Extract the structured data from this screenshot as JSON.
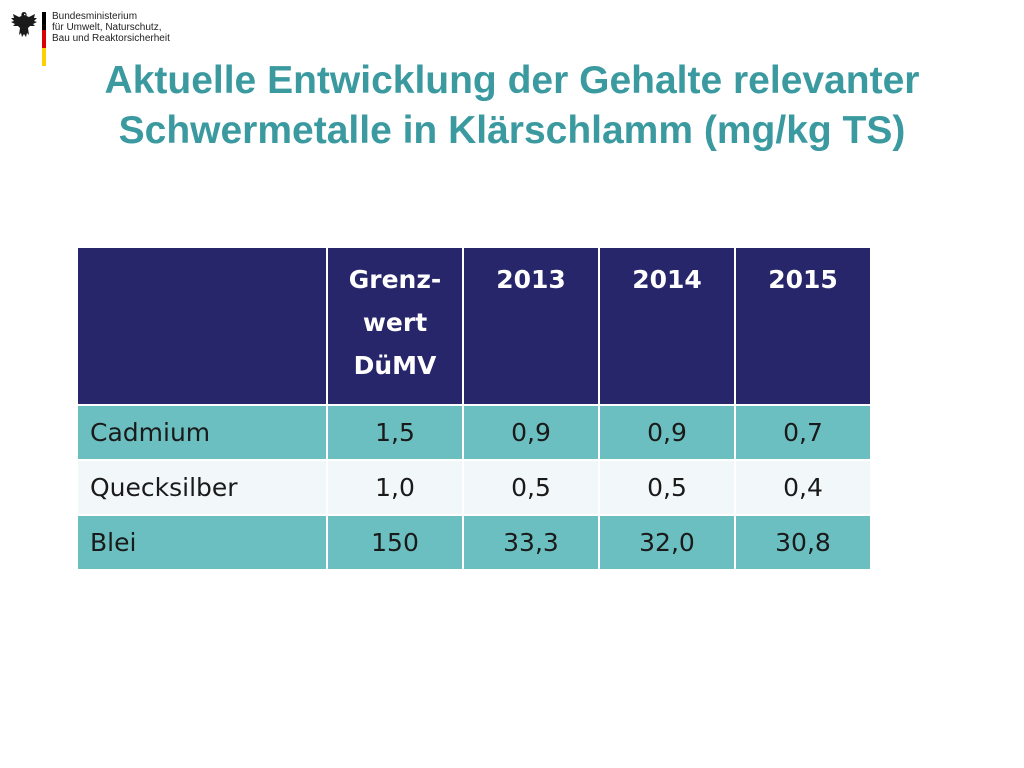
{
  "logo": {
    "lines": [
      "Bundesministerium",
      "für Umwelt, Naturschutz,",
      "Bau und Reaktorsicherheit"
    ],
    "flag_colors": [
      "#000000",
      "#dd0000",
      "#ffce00"
    ],
    "emblem_icon": "eagle-icon"
  },
  "title": {
    "line1": "Aktuelle Entwicklung der Gehalte relevanter",
    "line2": "Schwermetalle in Klärschlamm (mg/kg TS)"
  },
  "table": {
    "header": {
      "col0": "",
      "col1_lines": [
        "Grenz-",
        "wert",
        "DüMV"
      ],
      "col2": "2013",
      "col3": "2014",
      "col4": "2015"
    },
    "rows": [
      {
        "name": "Cadmium",
        "grenzwert": "1,5",
        "y2013": "0,9",
        "y2014": "0,9",
        "y2015": "0,7"
      },
      {
        "name": "Quecksilber",
        "grenzwert": "1,0",
        "y2013": "0,5",
        "y2014": "0,5",
        "y2015": "0,4"
      },
      {
        "name": "Blei",
        "grenzwert": "150",
        "y2013": "33,3",
        "y2014": "32,0",
        "y2015": "30,8"
      }
    ]
  },
  "colors": {
    "title": "#3a9aa0",
    "header_bg": "#27266b",
    "row_shade": "#6cbfc0",
    "row_light": "#f2f8f9"
  }
}
